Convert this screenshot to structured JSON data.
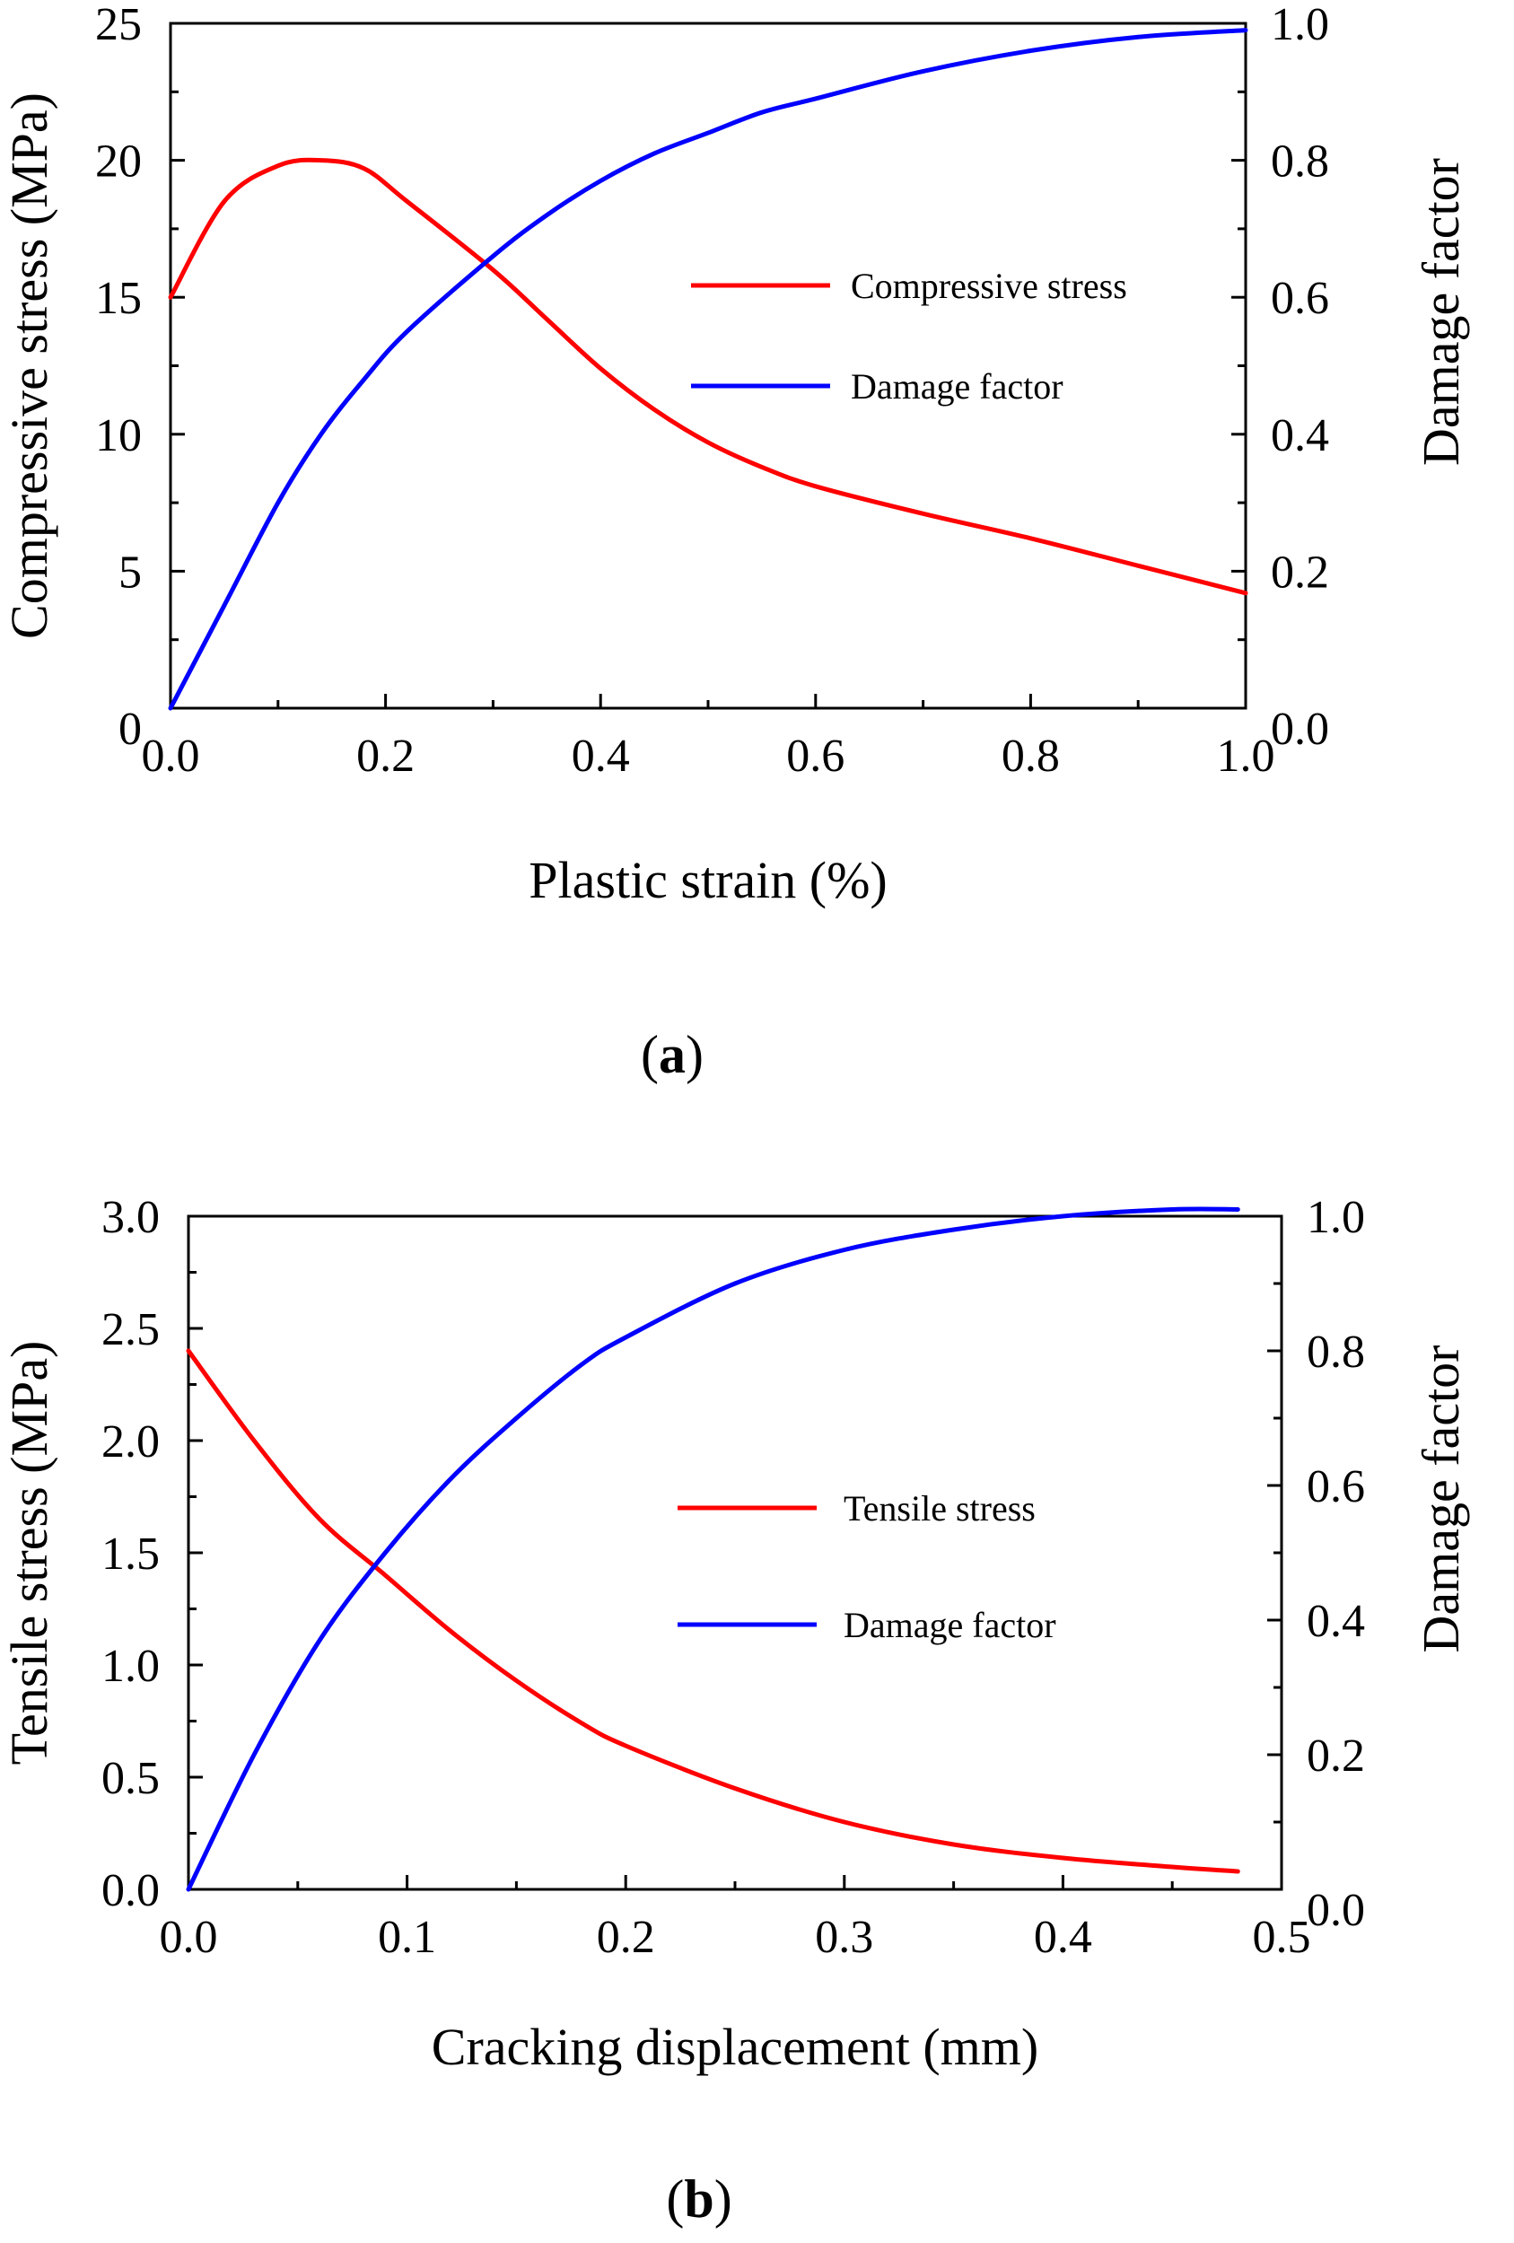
{
  "chart_data": [
    {
      "type": "line",
      "x": [
        0,
        0.05,
        0.1,
        0.14,
        0.18,
        0.22,
        0.3,
        0.35,
        0.4,
        0.45,
        0.5,
        0.55,
        0.6,
        0.7,
        0.8,
        0.9,
        1.0
      ],
      "series": [
        {
          "name": "Compressive stress",
          "axis": "left",
          "color": "#ff0000",
          "values": [
            15,
            18.5,
            19.8,
            20,
            19.7,
            18.5,
            16.0,
            14.2,
            12.4,
            10.9,
            9.7,
            8.8,
            8.1,
            7.1,
            6.2,
            5.2,
            4.2
          ]
        },
        {
          "name": "Damage factor",
          "axis": "right",
          "color": "#0000ff",
          "values": [
            0,
            0.15,
            0.3,
            0.4,
            0.48,
            0.55,
            0.66,
            0.72,
            0.77,
            0.81,
            0.84,
            0.87,
            0.89,
            0.93,
            0.96,
            0.98,
            0.99
          ]
        }
      ],
      "xlabel": "Plastic strain (%)",
      "ylabel_left": "Compressive stress (MPa)",
      "ylabel_right": "Damage factor",
      "xlim": [
        0,
        1.0
      ],
      "ylim_left": [
        0,
        25
      ],
      "ylim_right": [
        0,
        1.0
      ],
      "xticks": [
        "0.0",
        "0.2",
        "0.4",
        "0.6",
        "0.8",
        "1.0"
      ],
      "yticks_left": [
        "0",
        "5",
        "10",
        "15",
        "20",
        "25"
      ],
      "yticks_right": [
        "0.0",
        "0.2",
        "0.4",
        "0.6",
        "0.8",
        "1.0"
      ],
      "legend": "center-right",
      "caption": "a"
    },
    {
      "type": "line",
      "x": [
        0,
        0.03,
        0.06,
        0.09,
        0.12,
        0.15,
        0.18,
        0.2,
        0.25,
        0.3,
        0.35,
        0.4,
        0.45,
        0.48
      ],
      "series": [
        {
          "name": "Tensile stress",
          "axis": "left",
          "color": "#ff0000",
          "values": [
            2.4,
            2.0,
            1.65,
            1.4,
            1.15,
            0.93,
            0.74,
            0.64,
            0.45,
            0.3,
            0.2,
            0.14,
            0.1,
            0.08
          ]
        },
        {
          "name": "Damage factor",
          "axis": "right",
          "color": "#0000ff",
          "values": [
            0,
            0.2,
            0.37,
            0.5,
            0.61,
            0.7,
            0.78,
            0.82,
            0.9,
            0.95,
            0.98,
            1.0,
            1.01,
            1.01
          ]
        }
      ],
      "xlabel": "Cracking displacement (mm)",
      "ylabel_left": "Tensile stress (MPa)",
      "ylabel_right": "Damage factor",
      "xlim": [
        0,
        0.5
      ],
      "ylim_left": [
        0,
        3.0
      ],
      "ylim_right": [
        0,
        1.0
      ],
      "xticks": [
        "0.0",
        "0.1",
        "0.2",
        "0.3",
        "0.4",
        "0.5"
      ],
      "yticks_left": [
        "0.0",
        "0.5",
        "1.0",
        "1.5",
        "2.0",
        "2.5",
        "3.0"
      ],
      "yticks_right": [
        "0.0",
        "0.2",
        "0.4",
        "0.6",
        "0.8",
        "1.0"
      ],
      "legend": "center-right",
      "caption": "b"
    }
  ]
}
